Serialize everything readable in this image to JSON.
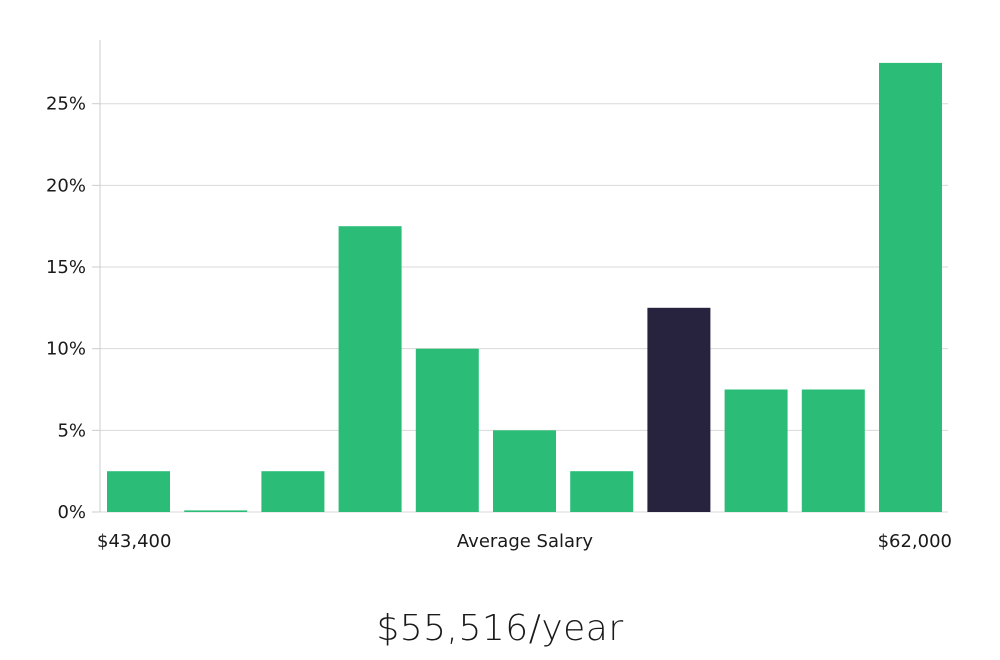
{
  "chart_data": {
    "type": "bar",
    "xlabel": "Average Salary",
    "x_range_labels": {
      "min": "$43,400",
      "max": "$62,000"
    },
    "yticks": [
      0,
      5,
      10,
      15,
      20,
      25
    ],
    "ytick_suffix": "%",
    "ylim": [
      0,
      28.9
    ],
    "grid": true,
    "values": [
      2.5,
      0.1,
      2.5,
      17.5,
      10,
      5,
      2.5,
      12.5,
      7.5,
      7.5,
      27.5
    ],
    "highlight_index": 7,
    "colors": {
      "bar": "#2bbd77",
      "highlight": "#27233f",
      "grid": "#d9d9d9",
      "axis": "#cccccc"
    }
  },
  "headline": "$55,516/year"
}
